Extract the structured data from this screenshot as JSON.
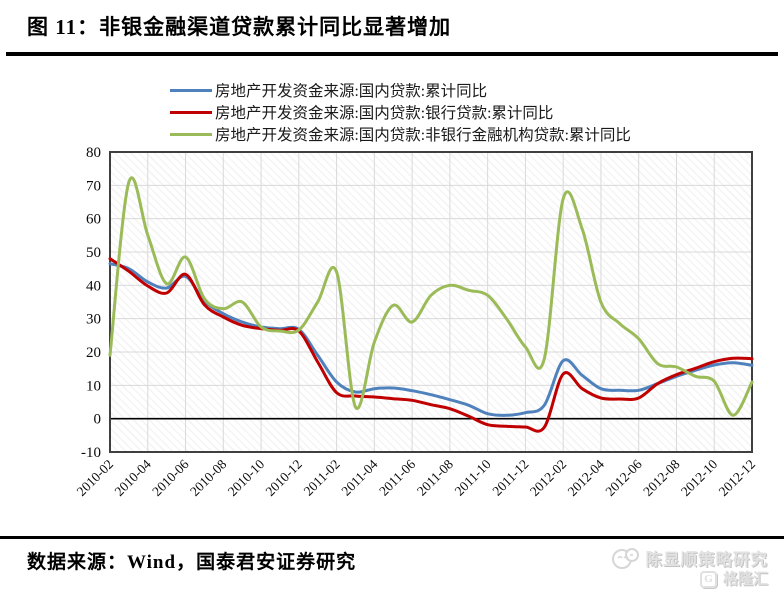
{
  "figure": {
    "title": "图 11：非银金融渠道贷款累计同比显著增加",
    "source_note": "数据来源：Wind，国泰君安证券研究",
    "watermark": {
      "author": "陈显顺策略研究",
      "platform": "格隆汇",
      "platform_logo_letter": "G"
    }
  },
  "chart_data": {
    "type": "line",
    "title": "",
    "xlabel": "",
    "ylabel": "",
    "ylim": [
      -10,
      80
    ],
    "y_ticks": [
      80,
      70,
      60,
      50,
      40,
      30,
      20,
      10,
      0,
      -10
    ],
    "grid": true,
    "legend_position": "top",
    "zero_line": true,
    "x": [
      "2010-02",
      "2010-03",
      "2010-04",
      "2010-05",
      "2010-06",
      "2010-07",
      "2010-08",
      "2010-09",
      "2010-10",
      "2010-11",
      "2010-12",
      "2011-01",
      "2011-02",
      "2011-03",
      "2011-04",
      "2011-05",
      "2011-06",
      "2011-07",
      "2011-08",
      "2011-09",
      "2011-10",
      "2011-11",
      "2011-12",
      "2012-01",
      "2012-02",
      "2012-03",
      "2012-04",
      "2012-05",
      "2012-06",
      "2012-07",
      "2012-08",
      "2012-09",
      "2012-10",
      "2012-11",
      "2012-12"
    ],
    "x_tick_labels": [
      "2010-02",
      "2010-04",
      "2010-06",
      "2010-08",
      "2010-10",
      "2010-12",
      "2011-02",
      "2011-04",
      "2011-06",
      "2011-08",
      "2011-10",
      "2011-12",
      "2012-02",
      "2012-04",
      "2012-06",
      "2012-08",
      "2012-10",
      "2012-12"
    ],
    "interpolated_months": [
      "2011-01",
      "2012-01"
    ],
    "series": [
      {
        "key": "domestic-loans",
        "name": "房地产开发资金来源:国内贷款:累计同比",
        "color": "#4f81bd",
        "values": [
          46.5,
          45,
          41,
          39.2,
          42.7,
          35.3,
          31.5,
          29,
          27.5,
          27,
          26.8,
          19,
          11,
          8,
          9,
          9.2,
          8.4,
          7.2,
          5.7,
          4,
          1.5,
          1,
          1.8,
          4,
          17.4,
          13,
          9,
          8.5,
          8.5,
          10.5,
          12.7,
          14.5,
          16.1,
          16.8,
          16
        ]
      },
      {
        "key": "bank-loans",
        "name": "房地产开发资金来源:国内贷款:银行贷款:累计同比",
        "color": "#c00000",
        "values": [
          48,
          44.2,
          39.8,
          37.7,
          43.3,
          34.2,
          30.5,
          28,
          27,
          26.5,
          26.3,
          17,
          7.8,
          6.8,
          6.5,
          6,
          5.5,
          4.2,
          3,
          0.7,
          -1.8,
          -2.3,
          -2.5,
          -2.6,
          13.4,
          9,
          6.2,
          5.9,
          6.2,
          10.5,
          13.2,
          15.1,
          17.1,
          18.1,
          18
        ]
      },
      {
        "key": "nonbank-loans",
        "name": "房地产开发资金来源:国内贷款:非银行金融机构贷款:累计同比",
        "color": "#9bbb59",
        "values": [
          19,
          71,
          55,
          40.5,
          48.5,
          36,
          33,
          35,
          27.5,
          26.3,
          26.6,
          35,
          44,
          3.5,
          23,
          34,
          29,
          37,
          40,
          38.5,
          37,
          30,
          21.5,
          18,
          66,
          57,
          35,
          28.5,
          24,
          16.5,
          15.5,
          12.7,
          11.2,
          1,
          11
        ]
      }
    ],
    "colors": {
      "gridline": "#d9d9d9",
      "plot_border": "#3f3f3f",
      "zero_line": "#000000"
    }
  }
}
